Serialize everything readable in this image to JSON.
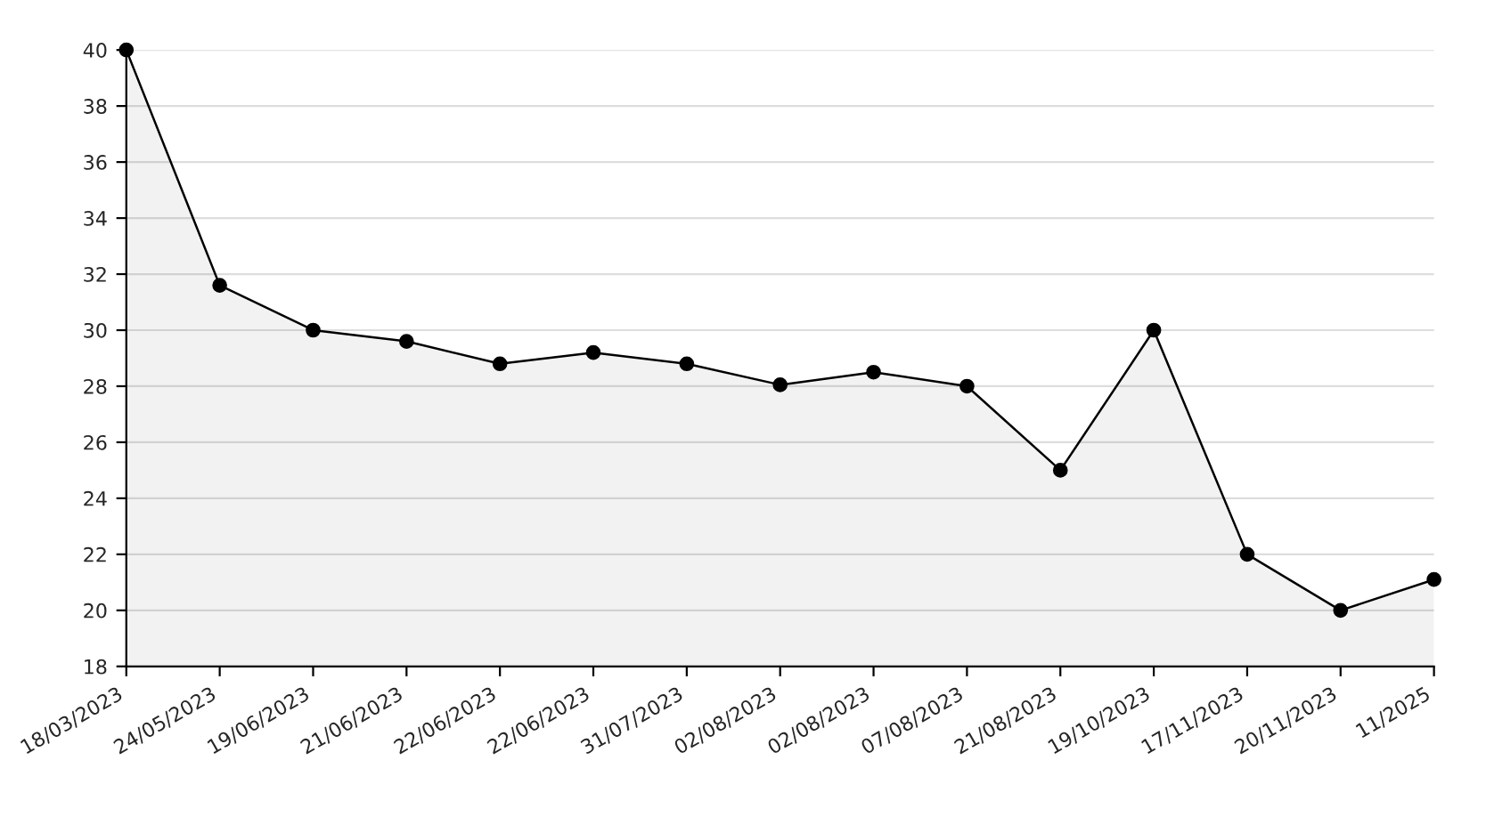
{
  "chart_data": {
    "type": "area",
    "categories": [
      "18/03/2023",
      "24/05/2023",
      "19/06/2023",
      "21/06/2023",
      "22/06/2023",
      "22/06/2023",
      "31/07/2023",
      "02/08/2023",
      "02/08/2023",
      "07/08/2023",
      "21/08/2023",
      "19/10/2023",
      "17/11/2023",
      "20/11/2023",
      "11/2025"
    ],
    "series": [
      {
        "color": "#000000",
        "values": [
          40,
          31.6,
          30,
          29.6,
          28.8,
          29.2,
          28.8,
          28.05,
          28.5,
          28,
          25,
          30,
          22,
          20,
          21.1
        ]
      }
    ],
    "ylim": [
      18,
      40
    ],
    "yticks": [
      18,
      20,
      22,
      24,
      26,
      28,
      30,
      32,
      34,
      36,
      38,
      40
    ],
    "grid": "y",
    "marker": "circle",
    "line_style": "solid",
    "legend": false
  }
}
